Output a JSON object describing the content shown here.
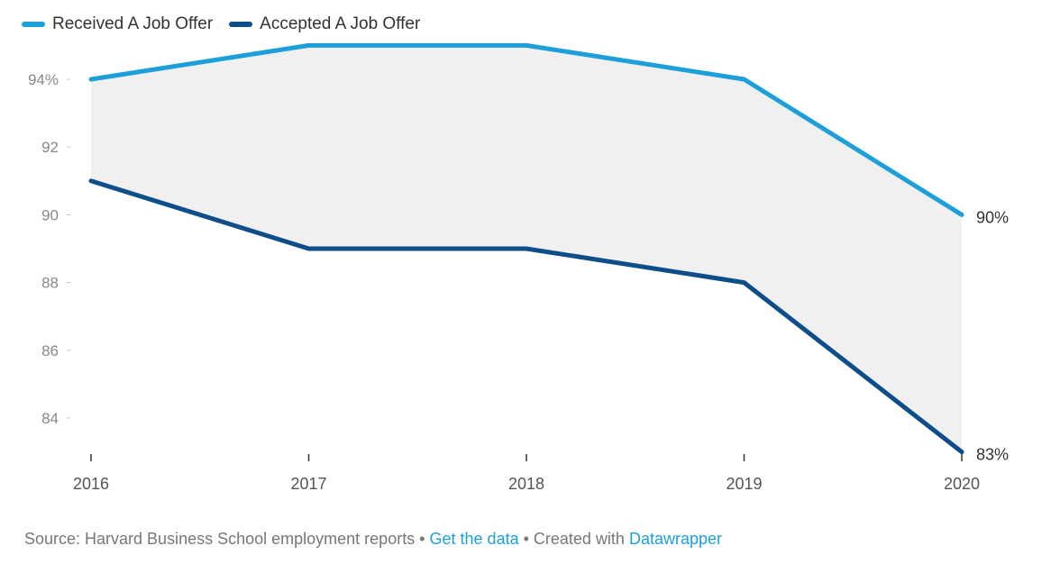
{
  "chart_data": {
    "type": "line",
    "title": "",
    "xlabel": "",
    "ylabel": "",
    "x": [
      "2016",
      "2017",
      "2018",
      "2019",
      "2020"
    ],
    "ylim": [
      83,
      95
    ],
    "y_ticks": [
      {
        "value": 94,
        "label": "94%"
      },
      {
        "value": 92,
        "label": "92"
      },
      {
        "value": 90,
        "label": "90"
      },
      {
        "value": 88,
        "label": "88"
      },
      {
        "value": 86,
        "label": "86"
      },
      {
        "value": 84,
        "label": "84"
      }
    ],
    "grid": false,
    "legend_position": "top-left",
    "area_between_series": true,
    "area_color": "#f0f0f0",
    "series": [
      {
        "name": "Received A Job Offer",
        "color": "#1d9fd9",
        "values": [
          94,
          95,
          95,
          94,
          90
        ],
        "end_label": "90%"
      },
      {
        "name": "Accepted A Job Offer",
        "color": "#0d4d8a",
        "values": [
          91,
          89,
          89,
          88,
          83
        ],
        "end_label": "83%"
      }
    ]
  },
  "footer": {
    "source": "Source: Harvard Business School employment reports",
    "sep1": " • ",
    "get_data": "Get the data",
    "sep2": " • Created with ",
    "datawrapper": "Datawrapper"
  }
}
